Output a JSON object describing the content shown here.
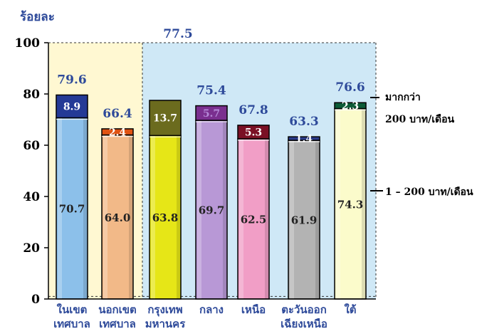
{
  "chart_data": {
    "type": "bar",
    "stacked": true,
    "ylabel": "ร้อยละ",
    "ylim": [
      0,
      100
    ],
    "yticks": [
      "0",
      "20",
      "40",
      "60",
      "80",
      "100"
    ],
    "categories": [
      [
        "ในเขต",
        "เทศบาล"
      ],
      [
        "นอกเขต",
        "เทศบาล"
      ],
      [
        "กรุงเทพ",
        "มหานคร"
      ],
      [
        "กลาง",
        ""
      ],
      [
        "เหนือ",
        ""
      ],
      [
        "ตะวันออก",
        "เฉียงเหนือ"
      ],
      [
        "ใต้",
        ""
      ]
    ],
    "series": [
      {
        "name": "1 – 200 บาท/เดือน",
        "values": [
          70.7,
          64.0,
          63.8,
          69.7,
          62.5,
          61.9,
          74.3
        ],
        "labels": [
          "70.7",
          "64.0",
          "63.8",
          "69.7",
          "62.5",
          "61.9",
          "74.3"
        ]
      },
      {
        "name": "มากกว่า 200 บาท/เดือน",
        "values": [
          8.9,
          2.4,
          13.7,
          5.7,
          5.3,
          1.4,
          2.3
        ],
        "labels": [
          "8.9",
          "2.4",
          "13.7",
          "5.7",
          "5.3",
          "1.4",
          "2.3"
        ]
      }
    ],
    "totals": [
      79.6,
      66.4,
      77.5,
      75.4,
      67.8,
      63.3,
      76.6
    ],
    "total_labels": [
      "79.6",
      "66.4",
      "",
      "75.4",
      "67.8",
      "63.3",
      "76.6"
    ],
    "group_total_label": "77.5",
    "legend_labels": [
      [
        "1 – 200 บาท/เดือน"
      ],
      [
        "มากกว่า",
        "200 บาท/เดือน"
      ]
    ],
    "grid": false,
    "legend_position": "right",
    "colors": {
      "background": "#ffffff",
      "panel_left": "#fff8d2",
      "panel_right": "#cfe8f6",
      "bottom_segments": [
        "#8cc0ea",
        "#f2b988",
        "#e6e617",
        "#b898d6",
        "#f19ec6",
        "#b3b3b3",
        "#fbfbcb"
      ],
      "top_segments": [
        "#243a96",
        "#e05312",
        "#6b6b1e",
        "#7a2f8f",
        "#7a1025",
        "#2b3b8a",
        "#0c5a36"
      ],
      "label_blue": "#2e4a9a",
      "axis": "#000000"
    }
  }
}
